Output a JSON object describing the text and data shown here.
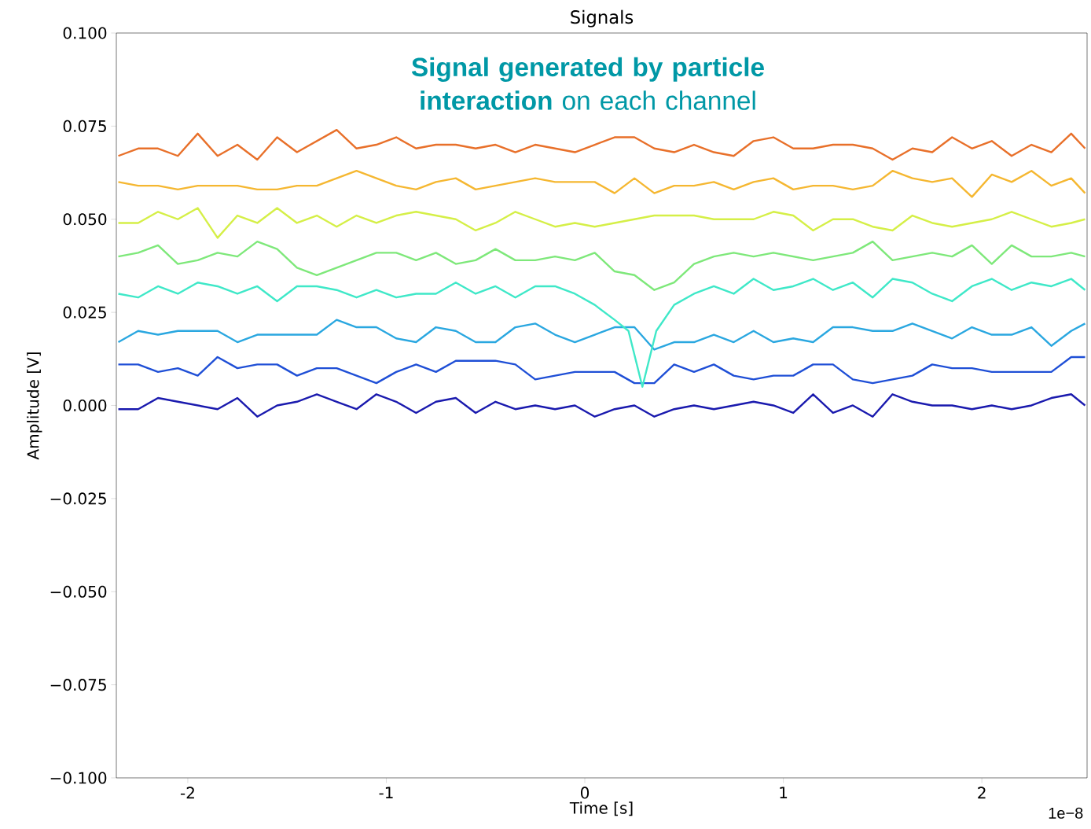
{
  "chart_data": {
    "type": "line",
    "title": "Signals",
    "xlabel": "Time [s]",
    "ylabel": "Amplitude [V]",
    "annotations": [
      "**Signal generated by particle interaction** on each channel",
      "1e−8"
    ],
    "x": [
      -2.35,
      -2.25,
      -2.15,
      -2.05,
      -1.95,
      -1.85,
      -1.75,
      -1.65,
      -1.55,
      -1.45,
      -1.35,
      -1.25,
      -1.15,
      -1.05,
      -0.95,
      -0.85,
      -0.75,
      -0.65,
      -0.55,
      -0.45,
      -0.35,
      -0.25,
      -0.15,
      -0.05,
      0.05,
      0.15,
      0.25,
      0.35,
      0.45,
      0.55,
      0.65,
      0.75,
      0.85,
      0.95,
      1.05,
      1.15,
      1.25,
      1.35,
      1.45,
      1.55,
      1.65,
      1.75,
      1.85,
      1.95,
      2.05,
      2.15,
      2.25,
      2.35,
      2.45,
      2.52
    ],
    "xlim": [
      -2.36,
      2.53
    ],
    "xticks": [
      -2,
      -1,
      0,
      1,
      2
    ],
    "ylim": [
      -0.1,
      0.1
    ],
    "yticks": [
      {
        "value": -0.1,
        "label": "−0.100"
      },
      {
        "value": -0.075,
        "label": "−0.075"
      },
      {
        "value": -0.05,
        "label": "−0.050"
      },
      {
        "value": -0.025,
        "label": "−0.025"
      },
      {
        "value": 0,
        "label": "0.000"
      },
      {
        "value": 0.025,
        "label": "0.025"
      },
      {
        "value": 0.05,
        "label": "0.050"
      },
      {
        "value": 0.075,
        "label": "0.075"
      },
      {
        "value": 0.1,
        "label": "0.100"
      }
    ],
    "series": [
      {
        "color": "#1a1aae",
        "values": [
          -0.001,
          -0.001,
          0.002,
          0.001,
          0.0,
          -0.001,
          0.002,
          -0.003,
          0.0,
          0.001,
          0.003,
          0.001,
          -0.001,
          0.003,
          0.001,
          -0.002,
          0.001,
          0.002,
          -0.002,
          0.001,
          -0.001,
          0.0,
          -0.001,
          0.0,
          -0.003,
          -0.001,
          0.0,
          -0.003,
          -0.001,
          0.0,
          -0.001,
          0.0,
          0.001,
          0.0,
          -0.002,
          0.003,
          -0.002,
          0.0,
          -0.003,
          0.003,
          0.001,
          0.0,
          0.0,
          -0.001,
          0.0,
          -0.001,
          0.0,
          0.002,
          0.003,
          0.0
        ]
      },
      {
        "color": "#1f4fd6",
        "values": [
          0.011,
          0.011,
          0.009,
          0.01,
          0.008,
          0.013,
          0.01,
          0.011,
          0.011,
          0.008,
          0.01,
          0.01,
          0.008,
          0.006,
          0.009,
          0.011,
          0.009,
          0.012,
          0.012,
          0.012,
          0.011,
          0.007,
          0.008,
          0.009,
          0.009,
          0.009,
          0.006,
          0.006,
          0.011,
          0.009,
          0.011,
          0.008,
          0.007,
          0.008,
          0.008,
          0.011,
          0.011,
          0.007,
          0.006,
          0.007,
          0.008,
          0.011,
          0.01,
          0.01,
          0.009,
          0.009,
          0.009,
          0.009,
          0.013,
          0.013
        ]
      },
      {
        "color": "#2aa7e0",
        "values": [
          0.017,
          0.02,
          0.019,
          0.02,
          0.02,
          0.02,
          0.017,
          0.019,
          0.019,
          0.019,
          0.019,
          0.023,
          0.021,
          0.021,
          0.018,
          0.017,
          0.021,
          0.02,
          0.017,
          0.017,
          0.021,
          0.022,
          0.019,
          0.017,
          0.019,
          0.021,
          0.021,
          0.015,
          0.017,
          0.017,
          0.019,
          0.017,
          0.02,
          0.017,
          0.018,
          0.017,
          0.021,
          0.021,
          0.02,
          0.02,
          0.022,
          0.02,
          0.018,
          0.021,
          0.019,
          0.019,
          0.021,
          0.016,
          0.02,
          0.022
        ]
      },
      {
        "color": "#3fe8c8",
        "x": [
          -2.35,
          -2.25,
          -2.15,
          -2.05,
          -1.95,
          -1.85,
          -1.75,
          -1.65,
          -1.55,
          -1.45,
          -1.35,
          -1.25,
          -1.15,
          -1.05,
          -0.95,
          -0.85,
          -0.75,
          -0.65,
          -0.55,
          -0.45,
          -0.35,
          -0.25,
          -0.15,
          -0.05,
          0.05,
          0.15,
          0.22,
          0.29,
          0.36,
          0.45,
          0.55,
          0.65,
          0.75,
          0.85,
          0.95,
          1.05,
          1.15,
          1.25,
          1.35,
          1.45,
          1.55,
          1.65,
          1.75,
          1.85,
          1.95,
          2.05,
          2.15,
          2.25,
          2.35,
          2.45,
          2.52
        ],
        "values": [
          0.03,
          0.029,
          0.032,
          0.03,
          0.033,
          0.032,
          0.03,
          0.032,
          0.028,
          0.032,
          0.032,
          0.031,
          0.029,
          0.031,
          0.029,
          0.03,
          0.03,
          0.033,
          0.03,
          0.032,
          0.029,
          0.032,
          0.032,
          0.03,
          0.027,
          0.023,
          0.02,
          0.005,
          0.02,
          0.027,
          0.03,
          0.032,
          0.03,
          0.034,
          0.031,
          0.032,
          0.034,
          0.031,
          0.033,
          0.029,
          0.034,
          0.033,
          0.03,
          0.028,
          0.032,
          0.034,
          0.031,
          0.033,
          0.032,
          0.034,
          0.031
        ]
      },
      {
        "color": "#7ee87a",
        "values": [
          0.04,
          0.041,
          0.043,
          0.038,
          0.039,
          0.041,
          0.04,
          0.044,
          0.042,
          0.037,
          0.035,
          0.037,
          0.039,
          0.041,
          0.041,
          0.039,
          0.041,
          0.038,
          0.039,
          0.042,
          0.039,
          0.039,
          0.04,
          0.039,
          0.041,
          0.036,
          0.035,
          0.031,
          0.033,
          0.038,
          0.04,
          0.041,
          0.04,
          0.041,
          0.04,
          0.039,
          0.04,
          0.041,
          0.044,
          0.039,
          0.04,
          0.041,
          0.04,
          0.043,
          0.038,
          0.043,
          0.04,
          0.04,
          0.041,
          0.04
        ]
      },
      {
        "color": "#d5ef47",
        "values": [
          0.049,
          0.049,
          0.052,
          0.05,
          0.053,
          0.045,
          0.051,
          0.049,
          0.053,
          0.049,
          0.051,
          0.048,
          0.051,
          0.049,
          0.051,
          0.052,
          0.051,
          0.05,
          0.047,
          0.049,
          0.052,
          0.05,
          0.048,
          0.049,
          0.048,
          0.049,
          0.05,
          0.051,
          0.051,
          0.051,
          0.05,
          0.05,
          0.05,
          0.052,
          0.051,
          0.047,
          0.05,
          0.05,
          0.048,
          0.047,
          0.051,
          0.049,
          0.048,
          0.049,
          0.05,
          0.052,
          0.05,
          0.048,
          0.049,
          0.05
        ]
      },
      {
        "color": "#f5b731",
        "values": [
          0.06,
          0.059,
          0.059,
          0.058,
          0.059,
          0.059,
          0.059,
          0.058,
          0.058,
          0.059,
          0.059,
          0.061,
          0.063,
          0.061,
          0.059,
          0.058,
          0.06,
          0.061,
          0.058,
          0.059,
          0.06,
          0.061,
          0.06,
          0.06,
          0.06,
          0.057,
          0.061,
          0.057,
          0.059,
          0.059,
          0.06,
          0.058,
          0.06,
          0.061,
          0.058,
          0.059,
          0.059,
          0.058,
          0.059,
          0.063,
          0.061,
          0.06,
          0.061,
          0.056,
          0.062,
          0.06,
          0.063,
          0.059,
          0.061,
          0.057
        ]
      },
      {
        "color": "#e8702a",
        "values": [
          0.067,
          0.069,
          0.069,
          0.067,
          0.073,
          0.067,
          0.07,
          0.066,
          0.072,
          0.068,
          0.071,
          0.074,
          0.069,
          0.07,
          0.072,
          0.069,
          0.07,
          0.07,
          0.069,
          0.07,
          0.068,
          0.07,
          0.069,
          0.068,
          0.07,
          0.072,
          0.072,
          0.069,
          0.068,
          0.07,
          0.068,
          0.067,
          0.071,
          0.072,
          0.069,
          0.069,
          0.07,
          0.07,
          0.069,
          0.066,
          0.069,
          0.068,
          0.072,
          0.069,
          0.071,
          0.067,
          0.07,
          0.068,
          0.073,
          0.069
        ]
      }
    ]
  }
}
